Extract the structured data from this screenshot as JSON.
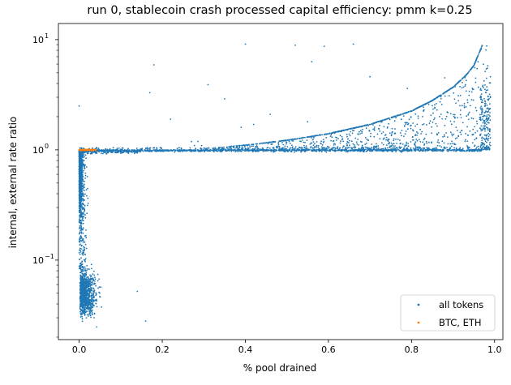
{
  "chart_data": {
    "type": "scatter",
    "title": "run 0, stablecoin crash processed capital efficiency: pmm k=0.25",
    "xlabel": "% pool drained",
    "ylabel": "internal, external rate ratio",
    "xscale": "linear",
    "yscale": "log",
    "xlim": [
      -0.05,
      1.02
    ],
    "ylim": [
      0.019,
      14
    ],
    "xticks": [
      0.0,
      0.2,
      0.4,
      0.6,
      0.8,
      1.0
    ],
    "xtick_labels": [
      "0.0",
      "0.2",
      "0.4",
      "0.6",
      "0.8",
      "1.0"
    ],
    "yticks": [
      0.1,
      1,
      10
    ],
    "ytick_labels": [
      "10",
      "10",
      "10"
    ],
    "ytick_exponents": [
      "−1",
      "0",
      "1"
    ],
    "legend_position": "lower-right",
    "series": [
      {
        "name": "all tokens",
        "color": "#1f77b4",
        "marker_size": 2,
        "description": "dense scatter: a vertical cluster near x≈0.0–0.12 from 0.027 to 1.0; a band along ratio≈1.0 across x 0–0.97; an upper curve rising from 1 at x≈0.3 to ~8.8 at x≈0.97; scattered outliers up to ~9",
        "outliers": [
          {
            "x": 0.0,
            "y": 2.5
          },
          {
            "x": 0.18,
            "y": 5.9
          },
          {
            "x": 0.17,
            "y": 3.3
          },
          {
            "x": 0.31,
            "y": 3.9
          },
          {
            "x": 0.35,
            "y": 2.9
          },
          {
            "x": 0.4,
            "y": 9.1
          },
          {
            "x": 0.52,
            "y": 8.9
          },
          {
            "x": 0.56,
            "y": 6.3
          },
          {
            "x": 0.59,
            "y": 8.7
          },
          {
            "x": 0.66,
            "y": 9.1
          },
          {
            "x": 0.7,
            "y": 4.6
          },
          {
            "x": 0.79,
            "y": 3.6
          },
          {
            "x": 0.22,
            "y": 1.9
          },
          {
            "x": 0.42,
            "y": 1.7
          },
          {
            "x": 0.46,
            "y": 2.1
          },
          {
            "x": 0.55,
            "y": 1.8
          },
          {
            "x": 0.83,
            "y": 2.3
          },
          {
            "x": 0.88,
            "y": 4.5
          },
          {
            "x": 0.93,
            "y": 3.9
          },
          {
            "x": 0.98,
            "y": 3.3
          },
          {
            "x": 0.99,
            "y": 4.6
          },
          {
            "x": 0.39,
            "y": 1.6
          },
          {
            "x": 0.14,
            "y": 0.052
          },
          {
            "x": 0.16,
            "y": 0.028
          }
        ],
        "curve": [
          {
            "x": 0.3,
            "y": 1.02
          },
          {
            "x": 0.4,
            "y": 1.1
          },
          {
            "x": 0.5,
            "y": 1.22
          },
          {
            "x": 0.6,
            "y": 1.4
          },
          {
            "x": 0.7,
            "y": 1.7
          },
          {
            "x": 0.8,
            "y": 2.25
          },
          {
            "x": 0.85,
            "y": 2.8
          },
          {
            "x": 0.9,
            "y": 3.7
          },
          {
            "x": 0.93,
            "y": 4.7
          },
          {
            "x": 0.95,
            "y": 5.8
          },
          {
            "x": 0.97,
            "y": 8.8
          }
        ]
      },
      {
        "name": "BTC, ETH",
        "color": "#ff7f0e",
        "marker_size": 2,
        "description": "tight cluster at ratio≈1.0 for x 0.0–0.04",
        "points": [
          {
            "x": 0.0,
            "y": 1.0
          },
          {
            "x": 0.005,
            "y": 0.98
          },
          {
            "x": 0.01,
            "y": 1.0
          },
          {
            "x": 0.015,
            "y": 1.01
          },
          {
            "x": 0.02,
            "y": 0.99
          },
          {
            "x": 0.025,
            "y": 1.0
          },
          {
            "x": 0.03,
            "y": 0.98
          },
          {
            "x": 0.035,
            "y": 1.0
          },
          {
            "x": 0.04,
            "y": 0.99
          }
        ]
      }
    ]
  }
}
